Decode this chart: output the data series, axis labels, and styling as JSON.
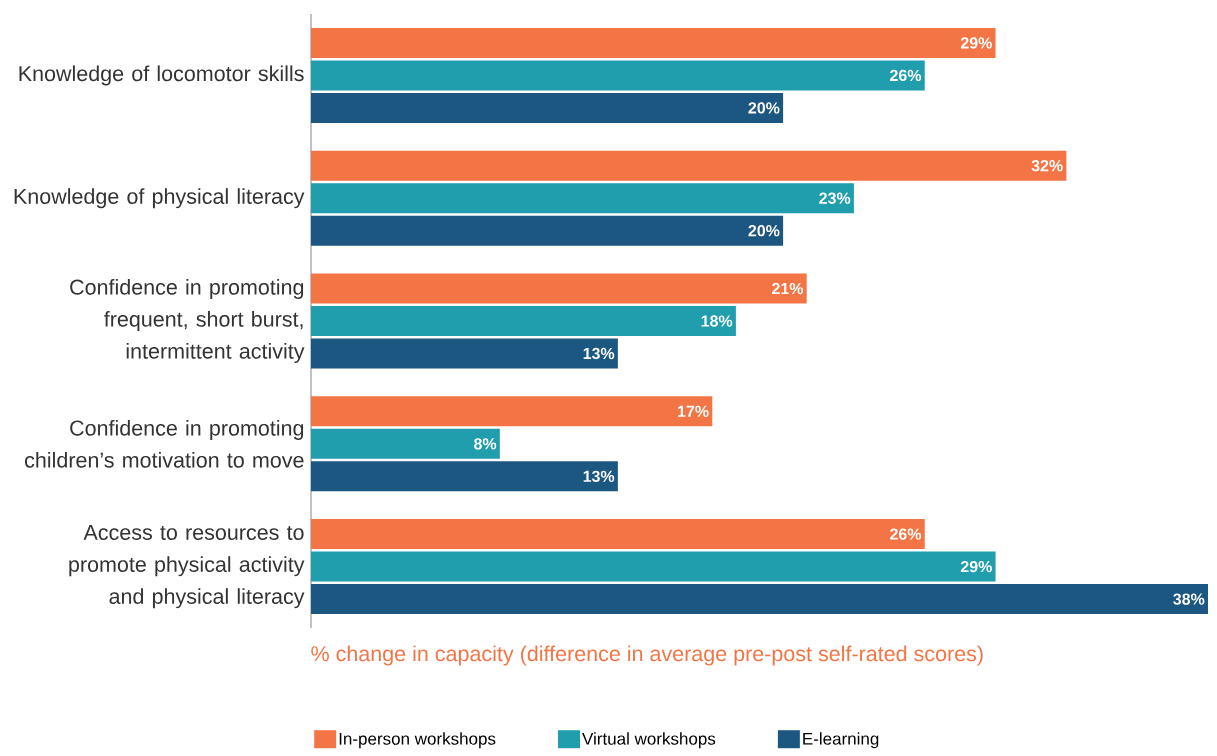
{
  "chart_data": {
    "type": "bar",
    "orientation": "horizontal",
    "xlabel": "% change in capacity (difference in average pre-post self-rated scores)",
    "categories": [
      "Knowledge of locomotor skills",
      "Knowledge of physical literacy",
      "Confidence in promoting frequent, short burst, intermittent activity",
      "Confidence in promoting children’s motivation to move",
      "Access to resources to promote physical activity and physical literacy"
    ],
    "series": [
      {
        "name": "In-person workshops",
        "color": "#f37546",
        "values": [
          29,
          32,
          21,
          17,
          26
        ],
        "value_labels": [
          "29%",
          "32%",
          "21%",
          "17%",
          "26%"
        ]
      },
      {
        "name": "Virtual workshops",
        "color": "#209eae",
        "values": [
          26,
          23,
          18,
          8,
          29
        ],
        "value_labels": [
          "26%",
          "23%",
          "18%",
          "8%",
          "29%"
        ]
      },
      {
        "name": "E-learning",
        "color": "#1b5780",
        "values": [
          20,
          20,
          13,
          13,
          38
        ],
        "value_labels": [
          "20%",
          "20%",
          "13%",
          "13%",
          "38%"
        ]
      }
    ],
    "xlim": [
      0,
      38
    ],
    "legend": "bottom"
  }
}
